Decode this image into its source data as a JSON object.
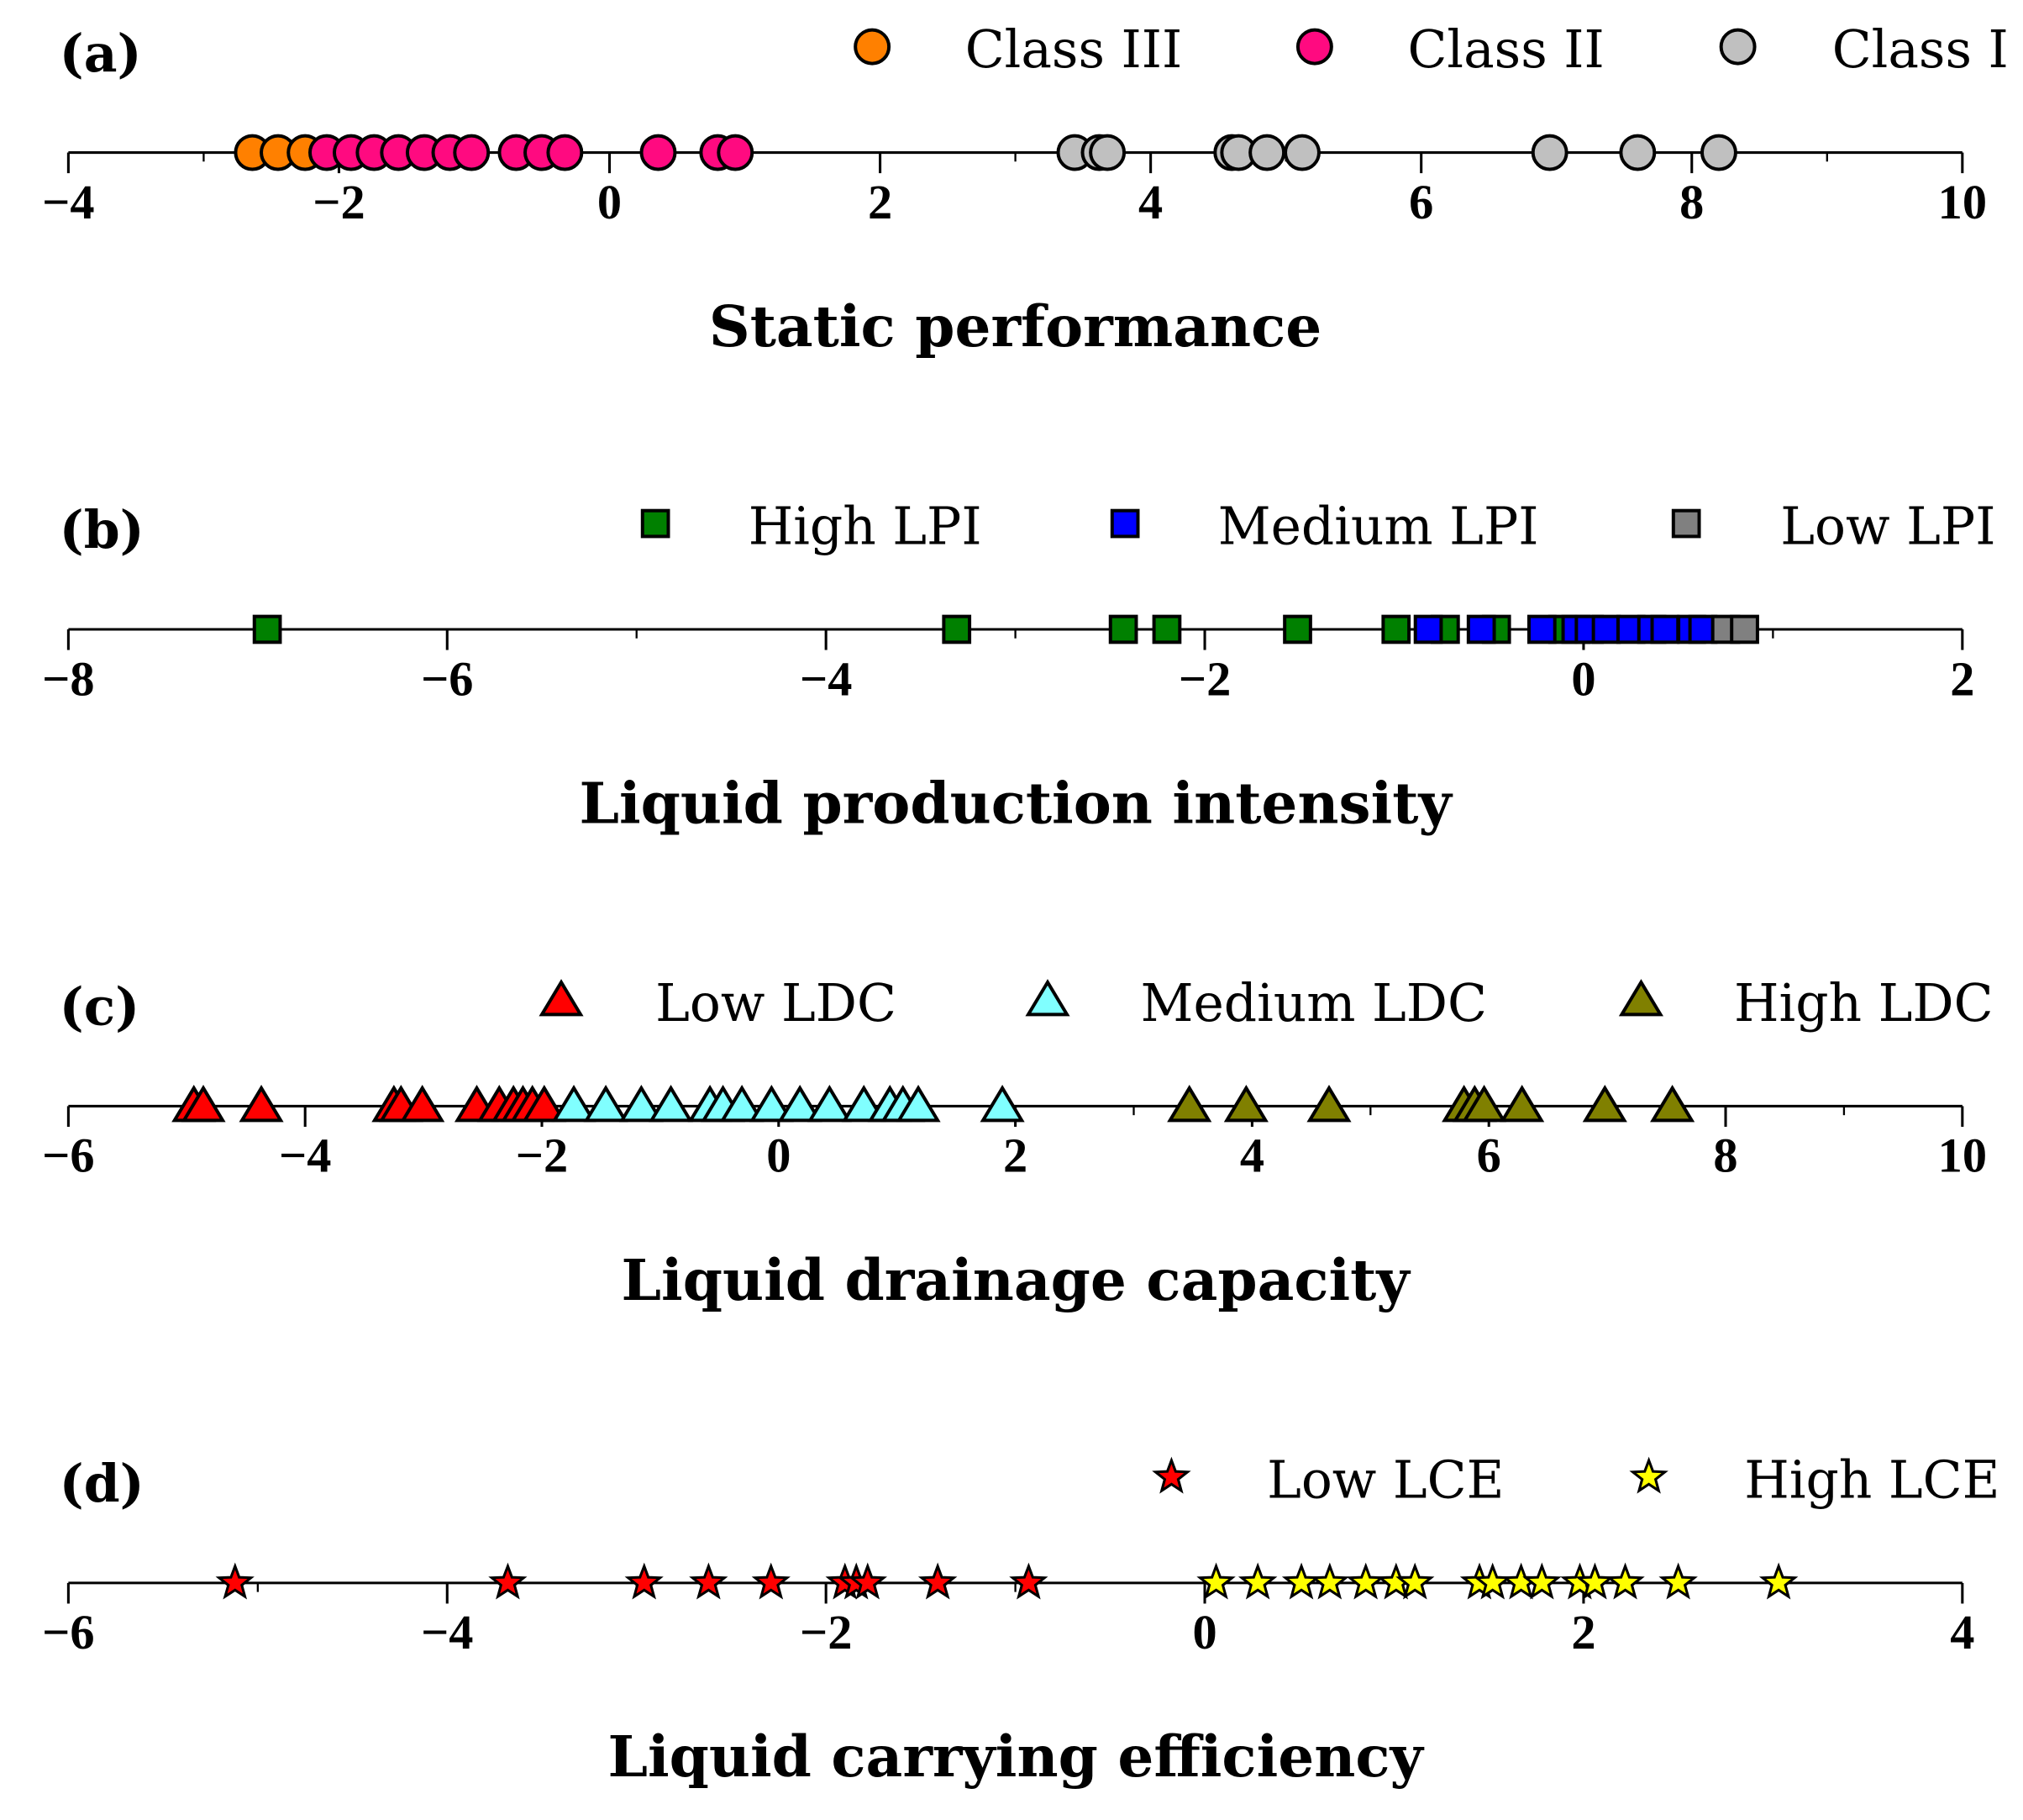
{
  "chart_data": [
    {
      "type": "scatter",
      "panel_label": "(a)",
      "title": "Static performance",
      "xlim": [
        -4,
        10
      ],
      "xticks": [
        -4,
        -2,
        0,
        2,
        4,
        6,
        8,
        10
      ],
      "marker": "circle",
      "series": [
        {
          "name": "Class III",
          "color": "#ff8000",
          "values": [
            -2.64,
            -2.45,
            -2.25
          ]
        },
        {
          "name": "Class II",
          "color": "#ff0a80",
          "values": [
            -2.09,
            -1.91,
            -1.74,
            -1.56,
            -1.37,
            -1.18,
            -1.02,
            -0.69,
            -0.5,
            -0.33,
            0.36,
            0.8,
            0.93
          ]
        },
        {
          "name": "Class I",
          "color": "#c0c0c0",
          "values": [
            3.44,
            3.62,
            3.68,
            4.6,
            4.65,
            4.86,
            5.12,
            6.95,
            7.6,
            8.2
          ]
        }
      ]
    },
    {
      "type": "scatter",
      "panel_label": "(b)",
      "title": "Liquid production intensity",
      "xlim": [
        -8,
        2
      ],
      "xticks": [
        -8,
        -6,
        -4,
        -2,
        0,
        2
      ],
      "marker": "square",
      "series": [
        {
          "name": "High LPI",
          "color": "#008000",
          "values": [
            -6.95,
            -3.31,
            -2.43,
            -2.2,
            -1.51,
            -0.99,
            -0.73,
            -0.46,
            -0.11
          ]
        },
        {
          "name": "Medium LPI",
          "color": "#0000ff",
          "values": [
            -0.82,
            -0.54,
            -0.22,
            -0.04,
            0.03,
            0.12,
            0.25,
            0.36,
            0.43,
            0.57,
            0.63
          ]
        },
        {
          "name": "Low LPI",
          "color": "#808080",
          "values": [
            0.75,
            0.85
          ]
        }
      ]
    },
    {
      "type": "scatter",
      "panel_label": "(c)",
      "title": "Liquid drainage capacity",
      "xlim": [
        -6,
        10
      ],
      "xticks": [
        -6,
        -4,
        -2,
        0,
        2,
        4,
        6,
        8,
        10
      ],
      "marker": "triangle",
      "series": [
        {
          "name": "Low LDC",
          "color": "#ff0000",
          "values": [
            -4.94,
            -4.86,
            -4.37,
            -3.25,
            -3.19,
            -3.01,
            -2.55,
            -2.36,
            -2.24,
            -2.16,
            -2.08,
            -1.98
          ]
        },
        {
          "name": "Medium LDC",
          "color": "#80ffff",
          "values": [
            -1.73,
            -1.46,
            -1.16,
            -0.91,
            -0.58,
            -0.47,
            -0.31,
            -0.06,
            0.18,
            0.43,
            0.72,
            0.94,
            1.05,
            1.18,
            1.89
          ]
        },
        {
          "name": "High LDC",
          "color": "#808000",
          "values": [
            3.47,
            3.95,
            4.65,
            5.79,
            5.88,
            5.96,
            6.28,
            6.98,
            7.55
          ]
        }
      ]
    },
    {
      "type": "scatter",
      "panel_label": "(d)",
      "title": "Liquid carrying efficiency",
      "xlim": [
        -6,
        4
      ],
      "xticks": [
        -6,
        -4,
        -2,
        0,
        2,
        4
      ],
      "marker": "star",
      "series": [
        {
          "name": "Low LCE",
          "color": "#ff0000",
          "values": [
            -5.12,
            -3.68,
            -2.96,
            -2.62,
            -2.29,
            -1.9,
            -1.84,
            -1.78,
            -1.41,
            -0.93
          ]
        },
        {
          "name": "High LCE",
          "color": "#ffff00",
          "values": [
            0.06,
            0.28,
            0.51,
            0.66,
            0.85,
            1.01,
            1.11,
            1.45,
            1.52,
            1.67,
            1.78,
            1.98,
            2.06,
            2.22,
            2.5,
            3.03
          ]
        }
      ]
    }
  ]
}
